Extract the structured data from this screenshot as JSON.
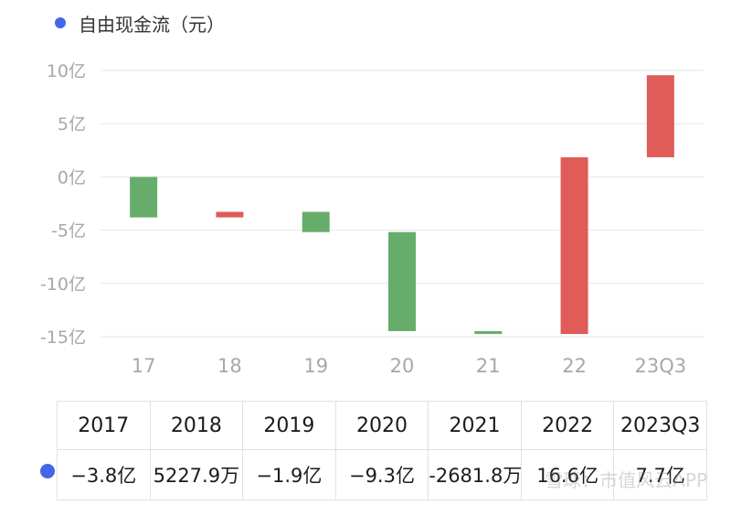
{
  "legend": {
    "label": "自由现金流（元）",
    "color": "#4466e8"
  },
  "colors": {
    "positive": "#df5c58",
    "negative": "#66ad6b",
    "axis_text": "#a8a8a8",
    "grid": "#e6e6e6"
  },
  "chart_data": {
    "type": "bar",
    "subtype": "waterfall",
    "categories": [
      "17",
      "18",
      "19",
      "20",
      "21",
      "22",
      "23Q3"
    ],
    "series": [
      {
        "name": "自由现金流（元）",
        "start": [
          0,
          -3.8,
          -3.28,
          -5.18,
          -14.48,
          -14.75,
          1.85
        ],
        "end": [
          -3.8,
          -3.28,
          -5.18,
          -14.48,
          -14.75,
          1.85,
          9.55
        ]
      }
    ],
    "yticks": [
      "10亿",
      "5亿",
      "0亿",
      "-5亿",
      "-10亿",
      "-15亿"
    ],
    "ytick_values": [
      10,
      5,
      0,
      -5,
      -10,
      -15
    ],
    "ylim": [
      -15,
      10
    ],
    "grid": true
  },
  "table": {
    "headers": [
      "2017",
      "2018",
      "2019",
      "2020",
      "2021",
      "2022",
      "2023Q3"
    ],
    "values": [
      "−3.8亿",
      "5227.9万",
      "−1.9亿",
      "−9.3亿",
      "-2681.8万",
      "16.6亿",
      "7.7亿"
    ]
  },
  "watermark": "雪球：市值风云APP"
}
